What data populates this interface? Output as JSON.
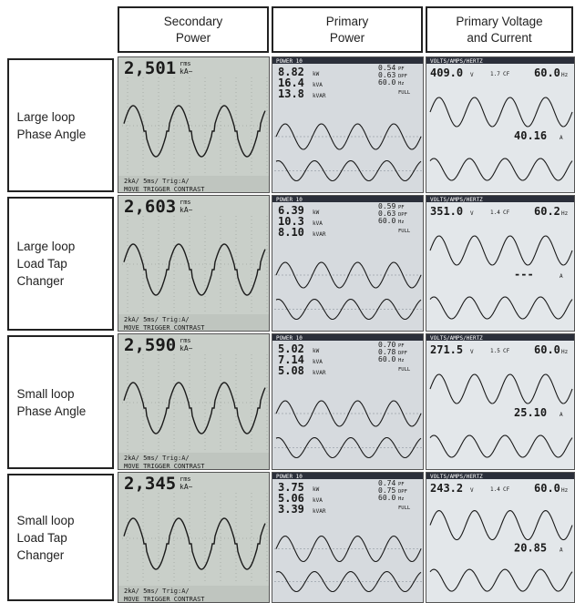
{
  "columns": [
    {
      "line1": "Secondary",
      "line2": "Power"
    },
    {
      "line1": "Primary",
      "line2": "Power"
    },
    {
      "line1": "Primary Voltage",
      "line2": "and Current"
    }
  ],
  "rows": [
    {
      "label": [
        "Large loop",
        "Phase Angle"
      ],
      "secondary": {
        "value": "2,501",
        "unit_top": "rms",
        "unit_bot": "kA~",
        "footer": "2kA/   5ms/   Trig:A/",
        "menu": "MOVE  TRIGGER  CONTRAST"
      },
      "primary": {
        "header": "POWER 10",
        "kw": "8.82",
        "kva": "16.4",
        "kvar": "13.8",
        "pf": "0.54",
        "dpf": "0.63",
        "hz": "60.0",
        "scale": "FULL"
      },
      "voltage": {
        "header": "VOLTS/AMPS/HERTZ",
        "v": "409.0",
        "cf": "1.7",
        "hz": "60.0",
        "a": "40.16"
      }
    },
    {
      "label": [
        "Large loop",
        "Load Tap",
        "Changer"
      ],
      "secondary": {
        "value": "2,603",
        "unit_top": "rms",
        "unit_bot": "kA~",
        "footer": "2kA/   5ms/   Trig:A/",
        "menu": "MOVE  TRIGGER  CONTRAST"
      },
      "primary": {
        "header": "POWER 10",
        "kw": "6.39",
        "kva": "10.3",
        "kvar": "8.10",
        "pf": "0.59",
        "dpf": "0.63",
        "hz": "60.0",
        "scale": "FULL"
      },
      "voltage": {
        "header": "VOLTS/AMPS/HERTZ",
        "v": "351.0",
        "cf": "1.4",
        "hz": "60.2",
        "a": "---"
      }
    },
    {
      "label": [
        "Small loop",
        "Phase Angle"
      ],
      "secondary": {
        "value": "2,590",
        "unit_top": "rms",
        "unit_bot": "kA~",
        "footer": "2kA/   5ms/   Trig:A/",
        "menu": "MOVE  TRIGGER  CONTRAST"
      },
      "primary": {
        "header": "POWER 10",
        "kw": "5.02",
        "kva": "7.14",
        "kvar": "5.08",
        "pf": "0.70",
        "dpf": "0.78",
        "hz": "60.0",
        "scale": "FULL"
      },
      "voltage": {
        "header": "VOLTS/AMPS/HERTZ",
        "v": "271.5",
        "cf": "1.5",
        "hz": "60.0",
        "a": "25.10"
      }
    },
    {
      "label": [
        "Small loop",
        "Load Tap",
        "Changer"
      ],
      "secondary": {
        "value": "2,345",
        "unit_top": "rms",
        "unit_bot": "kA~",
        "footer": "2kA/   5ms/   Trig:A/",
        "menu": "MOVE  TRIGGER  CONTRAST"
      },
      "primary": {
        "header": "POWER 10",
        "kw": "3.75",
        "kva": "5.06",
        "kvar": "3.39",
        "pf": "0.74",
        "dpf": "0.75",
        "hz": "60.0",
        "scale": "FULL"
      },
      "voltage": {
        "header": "VOLTS/AMPS/HERTZ",
        "v": "243.2",
        "cf": "1.4",
        "hz": "60.0",
        "a": "20.85"
      }
    }
  ],
  "units": {
    "kw": "kW",
    "kva": "kVA",
    "kvar": "kVAR",
    "pf": "PF",
    "dpf": "DPF",
    "hz": "Hz",
    "v": "V",
    "cf": "CF",
    "a": "A"
  },
  "colors": {
    "frame": "#222222",
    "lcd_secondary": "#c9cfc9",
    "lcd_primary": "#d6dade",
    "lcd_voltage": "#e3e7ea",
    "trace": "#1a1a1a",
    "header_bar": "#2b2f3a"
  }
}
